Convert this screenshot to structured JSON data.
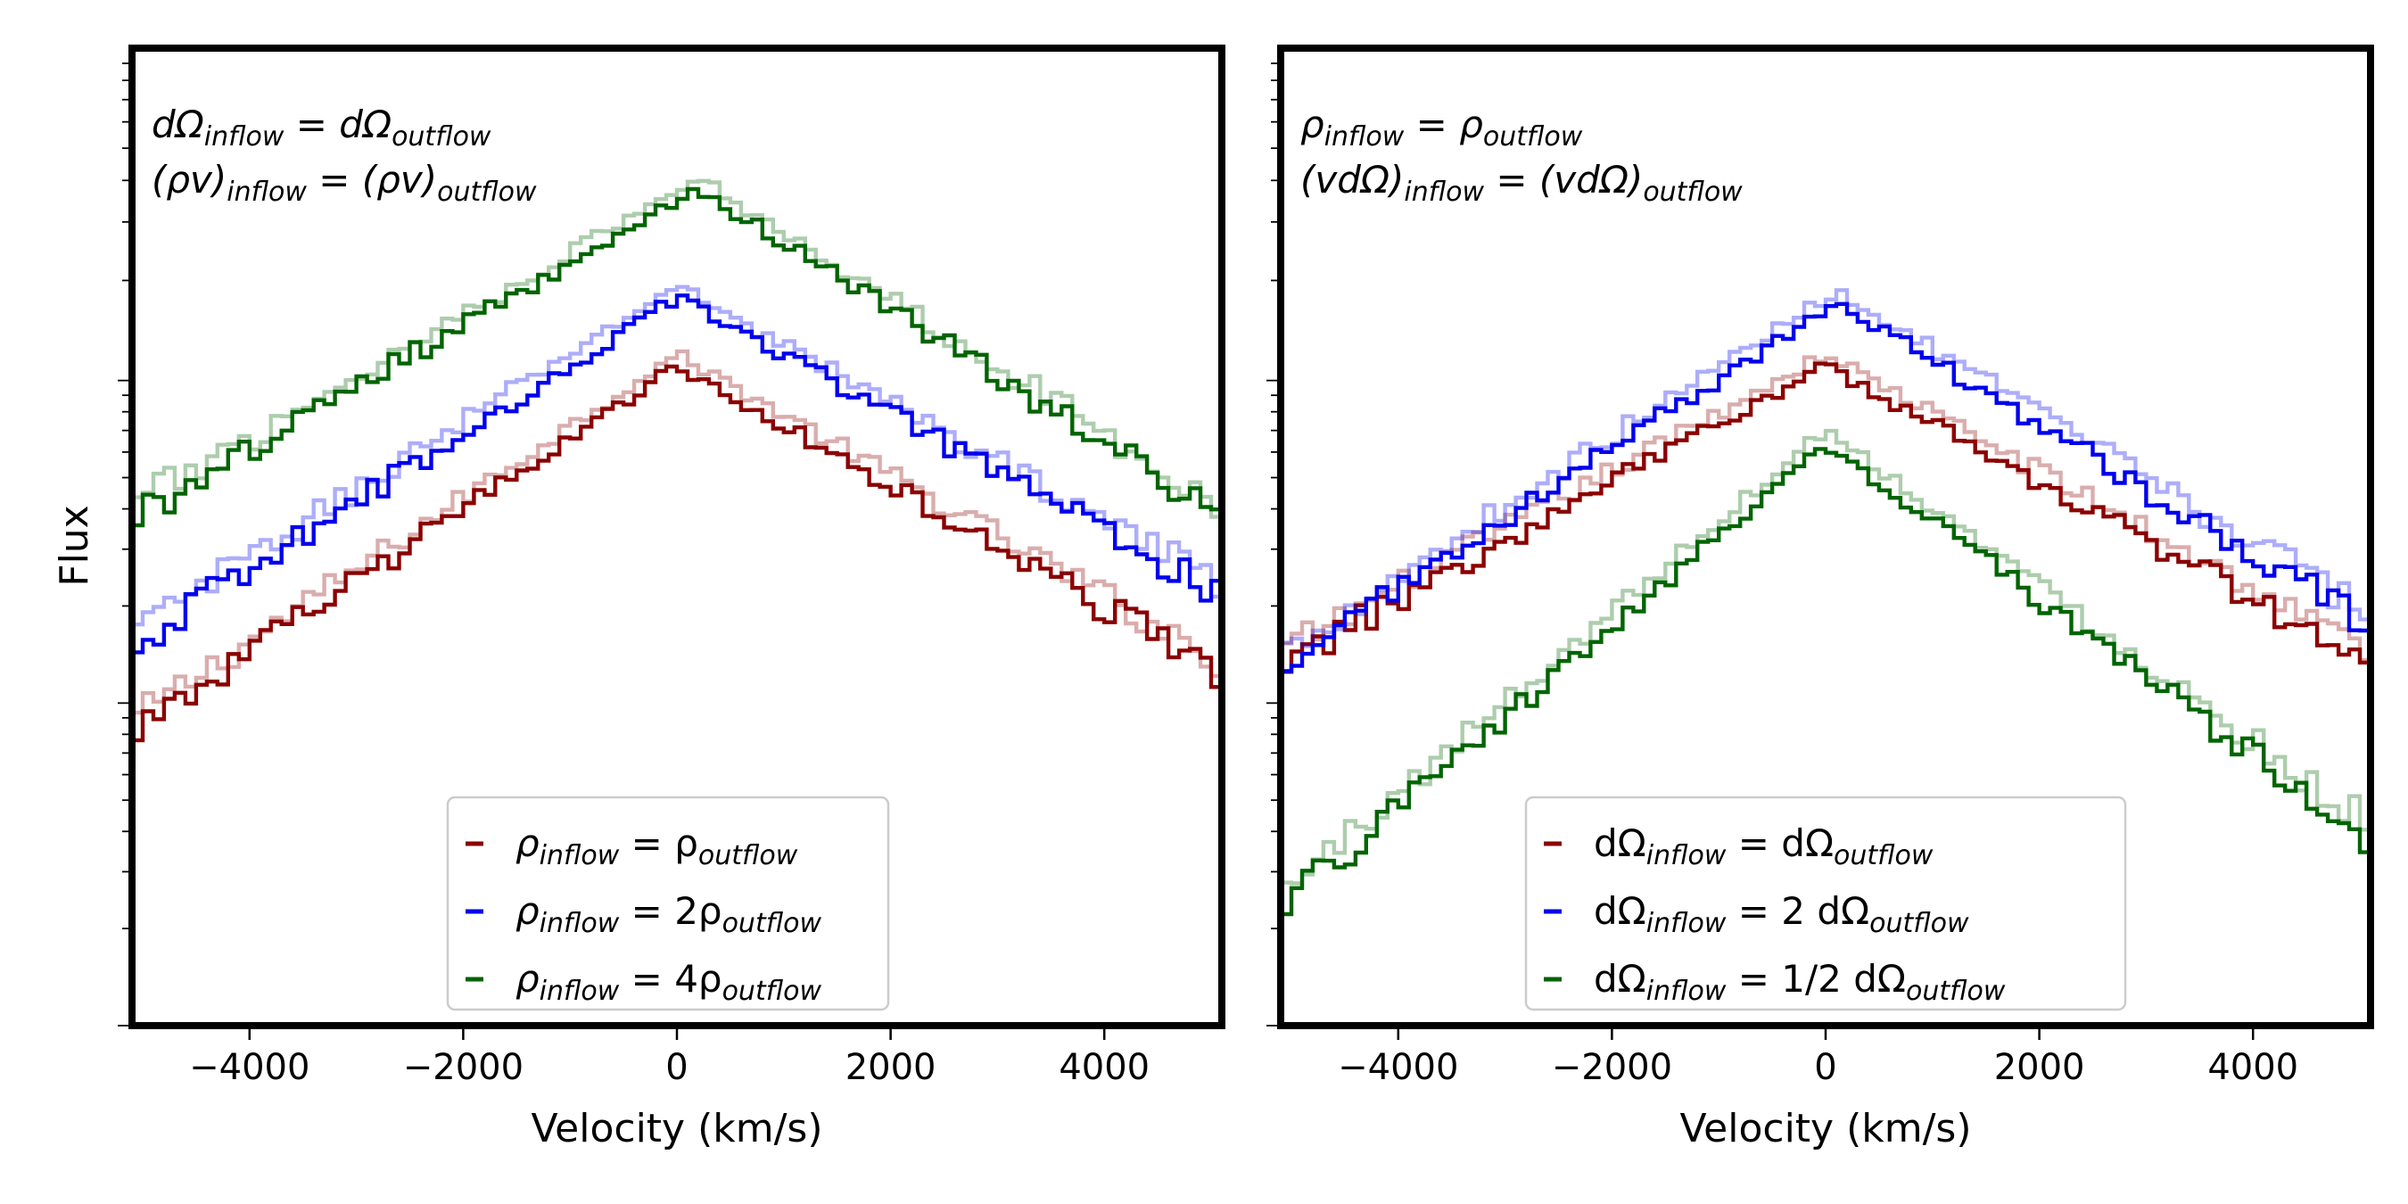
{
  "chart_data": [
    {
      "type": "line",
      "panel": "left",
      "xlabel": "Velocity (km/s)",
      "ylabel": "Flux",
      "xlim": [
        -5100,
        5100
      ],
      "ylim": [
        0.0,
        1.0
      ],
      "yscale": "log",
      "x_ticks": [
        -4000,
        -2000,
        0,
        2000,
        4000
      ],
      "x_tick_labels": [
        "−4000",
        "−2000",
        "0",
        "2000",
        "4000"
      ],
      "annotation_lines": [
        {
          "base": "dΩ",
          "sub": "inflow",
          "op": " = ",
          "base2": "dΩ",
          "sub2": "outflow",
          "italic": true
        },
        {
          "base": "(ρv)",
          "sub": "inflow",
          "op": " = ",
          "base2": "(ρv)",
          "sub2": "outflow",
          "italic": true
        }
      ],
      "legend_position": "lower-center",
      "legend": [
        {
          "pre": "ρ",
          "sub": "inflow",
          "mid": " = ρ",
          "sub2": "outflow",
          "color": "#8b0000"
        },
        {
          "pre": "ρ",
          "sub": "inflow",
          "mid": " = 2ρ",
          "sub2": "outflow",
          "color": "#0000ee"
        },
        {
          "pre": "ρ",
          "sub": "inflow",
          "mid": " = 4ρ",
          "sub2": "outflow",
          "color": "#006400"
        }
      ],
      "series": [
        {
          "color": "#8b0000",
          "peak_v": 0,
          "peak": 0.675,
          "left_end": 0.3,
          "right_end": 0.36,
          "faint_offset": 0.012
        },
        {
          "color": "#0000ee",
          "peak_v": 0,
          "peak": 0.745,
          "left_end": 0.39,
          "right_end": 0.44,
          "faint_offset": 0.012
        },
        {
          "color": "#006400",
          "peak_v": 200,
          "peak": 0.855,
          "left_end": 0.52,
          "right_end": 0.52,
          "faint_offset": 0.012
        }
      ]
    },
    {
      "type": "line",
      "panel": "right",
      "xlabel": "Velocity (km/s)",
      "ylabel": "",
      "xlim": [
        -5100,
        5100
      ],
      "ylim": [
        0.0,
        1.0
      ],
      "yscale": "log",
      "x_ticks": [
        -4000,
        -2000,
        0,
        2000,
        4000
      ],
      "x_tick_labels": [
        "−4000",
        "−2000",
        "0",
        "2000",
        "4000"
      ],
      "annotation_lines": [
        {
          "base": "ρ",
          "sub": "inflow",
          "op": " = ",
          "base2": "ρ",
          "sub2": "outflow",
          "italic": true
        },
        {
          "base": "(vdΩ)",
          "sub": "inflow",
          "op": " = ",
          "base2": "(vdΩ)",
          "sub2": "outflow",
          "italic": true
        }
      ],
      "legend_position": "lower-center",
      "legend": [
        {
          "pre": "dΩ",
          "sub": "inflow",
          "mid": " =     dΩ",
          "sub2": "outflow",
          "color": "#8b0000"
        },
        {
          "pre": "dΩ",
          "sub": "inflow",
          "mid": " =   2 dΩ",
          "sub2": "outflow",
          "color": "#0000ee"
        },
        {
          "pre": "dΩ",
          "sub": "inflow",
          "mid": "   = 1/2 dΩ",
          "sub2": "outflow",
          "color": "#006400"
        }
      ],
      "series": [
        {
          "color": "#8b0000",
          "peak_v": 0,
          "peak": 0.675,
          "left_end": 0.37,
          "right_end": 0.37,
          "faint_offset": 0.012
        },
        {
          "color": "#0000ee",
          "peak_v": 100,
          "peak": 0.74,
          "left_end": 0.37,
          "right_end": 0.41,
          "faint_offset": 0.012
        },
        {
          "color": "#006400",
          "peak_v": 0,
          "peak": 0.595,
          "left_end": 0.12,
          "right_end": 0.19,
          "faint_offset": 0.015
        }
      ]
    }
  ]
}
